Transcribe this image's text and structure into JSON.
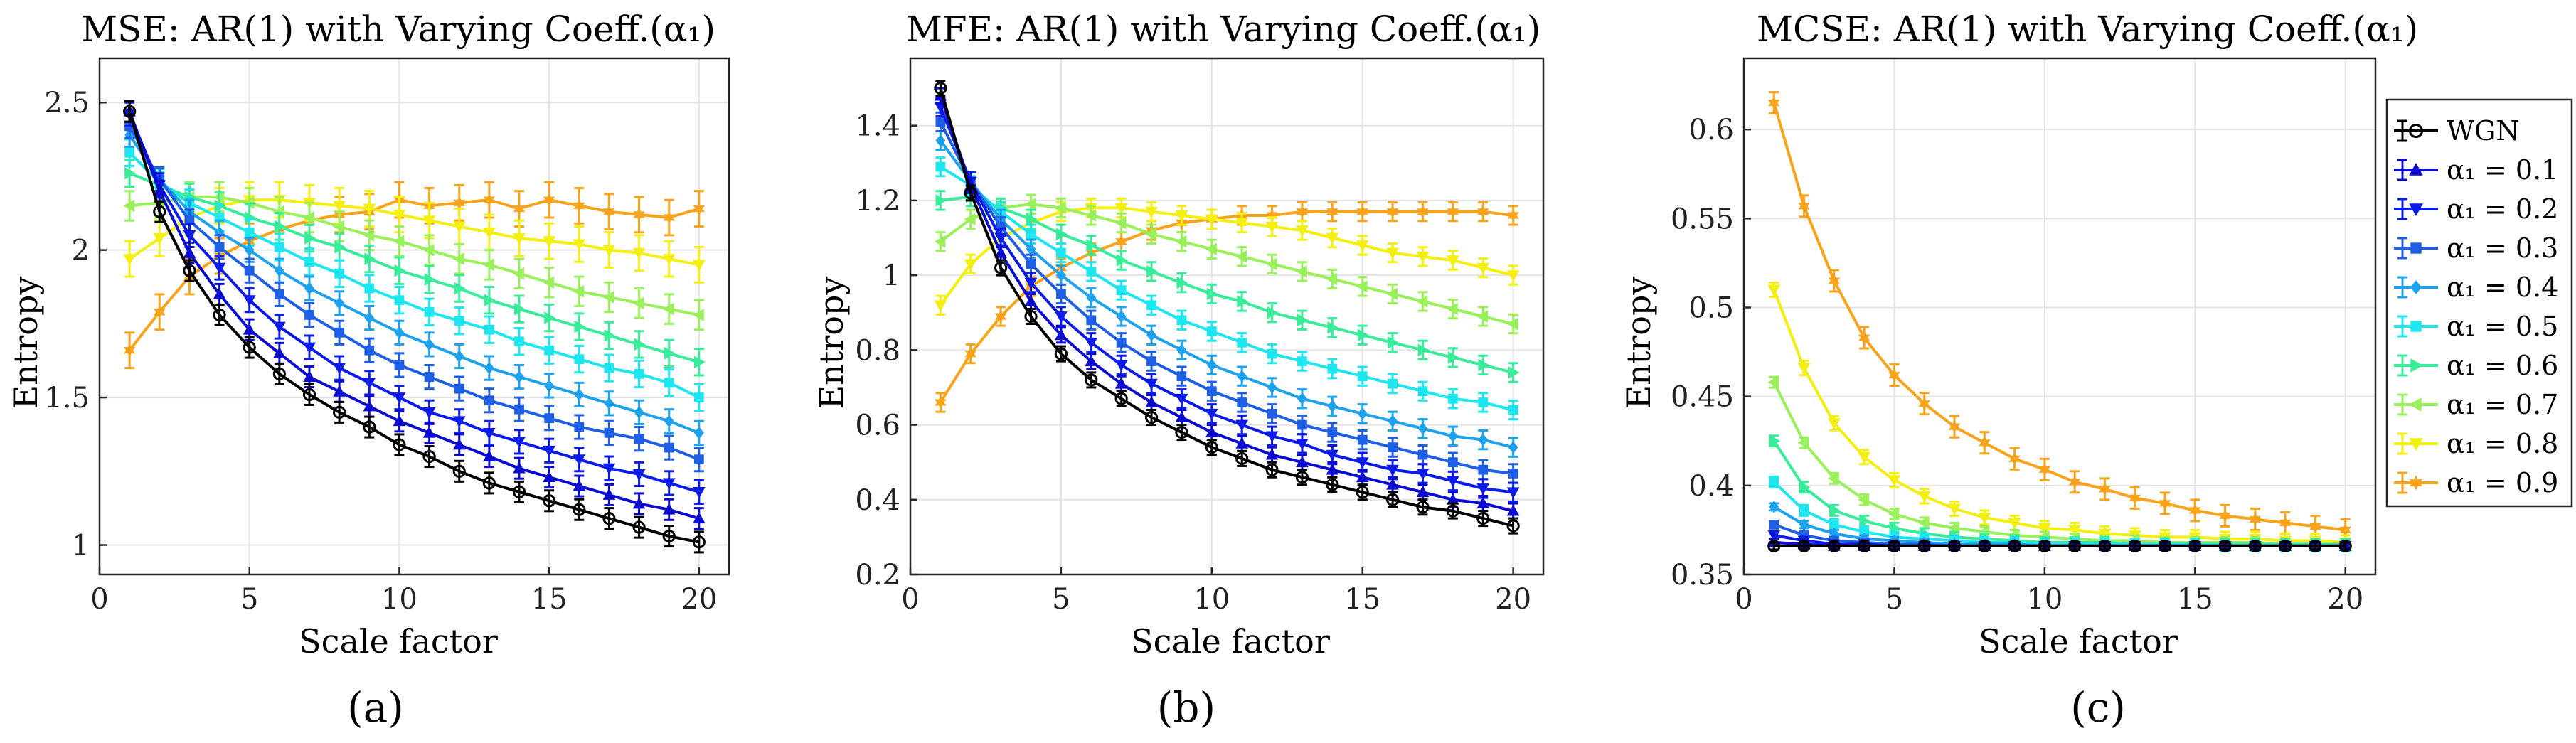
{
  "colors": [
    "#000000",
    "#0c0cd0",
    "#0c1ce8",
    "#1f5fe6",
    "#1ea2ee",
    "#1ee6ef",
    "#38ec9a",
    "#9af05a",
    "#f3ef10",
    "#f7a31b"
  ],
  "legend": {
    "entries": [
      "WGN",
      "α₁ = 0.1",
      "α₁ = 0.2",
      "α₁ = 0.3",
      "α₁ = 0.4",
      "α₁ = 0.5",
      "α₁ = 0.6",
      "α₁ = 0.7",
      "α₁ = 0.8",
      "α₁ = 0.9"
    ],
    "markers": [
      "circle",
      "triangle-up",
      "triangle-down",
      "square",
      "diamond",
      "square",
      "triangle-right",
      "triangle-left",
      "triangle-down",
      "hexagram"
    ]
  },
  "chart_data": [
    {
      "type": "line",
      "panel_label": "(a)",
      "title": "MSE: AR(1) with Varying Coeff.(α₁)",
      "xlabel": "Scale factor",
      "ylabel": "Entropy",
      "xlim": [
        0,
        21
      ],
      "ylim": [
        0.9,
        2.65
      ],
      "xticks": [
        0,
        5,
        10,
        15,
        20
      ],
      "yticks": [
        1,
        1.5,
        2,
        2.5
      ],
      "grid": true,
      "x": [
        1,
        2,
        3,
        4,
        5,
        6,
        7,
        8,
        9,
        10,
        11,
        12,
        13,
        14,
        15,
        16,
        17,
        18,
        19,
        20
      ],
      "series": [
        {
          "name": "WGN",
          "values": [
            2.47,
            2.13,
            1.93,
            1.78,
            1.67,
            1.58,
            1.51,
            1.45,
            1.4,
            1.34,
            1.3,
            1.25,
            1.21,
            1.18,
            1.15,
            1.12,
            1.09,
            1.06,
            1.03,
            1.01
          ],
          "err": 0.035
        },
        {
          "name": "α₁ = 0.1",
          "values": [
            2.47,
            2.2,
            1.99,
            1.85,
            1.73,
            1.65,
            1.57,
            1.52,
            1.47,
            1.42,
            1.38,
            1.34,
            1.3,
            1.26,
            1.23,
            1.2,
            1.17,
            1.14,
            1.12,
            1.09
          ],
          "err": 0.035
        },
        {
          "name": "α₁ = 0.2",
          "values": [
            2.46,
            2.22,
            2.05,
            1.94,
            1.83,
            1.74,
            1.67,
            1.6,
            1.55,
            1.5,
            1.45,
            1.42,
            1.38,
            1.35,
            1.32,
            1.29,
            1.26,
            1.24,
            1.21,
            1.18
          ],
          "err": 0.04
        },
        {
          "name": "α₁ = 0.3",
          "values": [
            2.42,
            2.24,
            2.1,
            2.01,
            1.93,
            1.85,
            1.78,
            1.72,
            1.66,
            1.61,
            1.57,
            1.53,
            1.49,
            1.46,
            1.43,
            1.4,
            1.38,
            1.36,
            1.33,
            1.29
          ],
          "err": 0.04
        },
        {
          "name": "α₁ = 0.4",
          "values": [
            2.39,
            2.24,
            2.13,
            2.06,
            2.0,
            1.93,
            1.87,
            1.82,
            1.77,
            1.72,
            1.68,
            1.64,
            1.6,
            1.57,
            1.54,
            1.51,
            1.48,
            1.45,
            1.42,
            1.38
          ],
          "err": 0.04
        },
        {
          "name": "α₁ = 0.5",
          "values": [
            2.33,
            2.23,
            2.16,
            2.11,
            2.06,
            2.01,
            1.96,
            1.92,
            1.87,
            1.83,
            1.79,
            1.76,
            1.73,
            1.69,
            1.66,
            1.63,
            1.6,
            1.58,
            1.55,
            1.5
          ],
          "err": 0.045
        },
        {
          "name": "α₁ = 0.6",
          "values": [
            2.26,
            2.22,
            2.18,
            2.15,
            2.11,
            2.08,
            2.04,
            2.01,
            1.97,
            1.93,
            1.9,
            1.87,
            1.83,
            1.8,
            1.77,
            1.74,
            1.71,
            1.68,
            1.65,
            1.62
          ],
          "err": 0.045
        },
        {
          "name": "α₁ = 0.7",
          "values": [
            2.15,
            2.16,
            2.18,
            2.18,
            2.16,
            2.13,
            2.11,
            2.08,
            2.05,
            2.03,
            2.0,
            1.97,
            1.95,
            1.92,
            1.89,
            1.86,
            1.84,
            1.82,
            1.8,
            1.78
          ],
          "err": 0.05
        },
        {
          "name": "α₁ = 0.8",
          "values": [
            1.97,
            2.04,
            2.11,
            2.15,
            2.17,
            2.17,
            2.16,
            2.15,
            2.14,
            2.12,
            2.1,
            2.08,
            2.06,
            2.04,
            2.03,
            2.02,
            2.0,
            1.99,
            1.97,
            1.95
          ],
          "err": 0.06
        },
        {
          "name": "α₁ = 0.9",
          "values": [
            1.66,
            1.79,
            1.91,
            1.98,
            2.03,
            2.07,
            2.1,
            2.12,
            2.13,
            2.17,
            2.15,
            2.16,
            2.17,
            2.14,
            2.17,
            2.15,
            2.13,
            2.12,
            2.11,
            2.14
          ],
          "err": 0.06
        }
      ]
    },
    {
      "type": "line",
      "panel_label": "(b)",
      "title": "MFE: AR(1) with Varying Coeff.(α₁)",
      "xlabel": "Scale factor",
      "ylabel": "Entropy",
      "xlim": [
        0,
        21
      ],
      "ylim": [
        0.2,
        1.58
      ],
      "xticks": [
        0,
        5,
        10,
        15,
        20
      ],
      "yticks": [
        0.2,
        0.4,
        0.6,
        0.8,
        1,
        1.2,
        1.4
      ],
      "grid": true,
      "x": [
        1,
        2,
        3,
        4,
        5,
        6,
        7,
        8,
        9,
        10,
        11,
        12,
        13,
        14,
        15,
        16,
        17,
        18,
        19,
        20
      ],
      "series": [
        {
          "name": "WGN",
          "values": [
            1.5,
            1.22,
            1.02,
            0.89,
            0.79,
            0.72,
            0.67,
            0.62,
            0.58,
            0.54,
            0.51,
            0.48,
            0.46,
            0.44,
            0.42,
            0.4,
            0.38,
            0.37,
            0.35,
            0.33
          ],
          "err": 0.02
        },
        {
          "name": "α₁ = 0.1",
          "values": [
            1.48,
            1.24,
            1.06,
            0.93,
            0.84,
            0.77,
            0.71,
            0.66,
            0.62,
            0.58,
            0.55,
            0.52,
            0.5,
            0.48,
            0.46,
            0.44,
            0.42,
            0.4,
            0.39,
            0.37
          ],
          "err": 0.02
        },
        {
          "name": "α₁ = 0.2",
          "values": [
            1.45,
            1.25,
            1.1,
            0.98,
            0.89,
            0.82,
            0.76,
            0.71,
            0.67,
            0.63,
            0.6,
            0.57,
            0.55,
            0.52,
            0.5,
            0.48,
            0.47,
            0.45,
            0.43,
            0.42
          ],
          "err": 0.025
        },
        {
          "name": "α₁ = 0.3",
          "values": [
            1.41,
            1.25,
            1.13,
            1.03,
            0.95,
            0.88,
            0.82,
            0.77,
            0.73,
            0.69,
            0.66,
            0.63,
            0.6,
            0.58,
            0.56,
            0.54,
            0.52,
            0.5,
            0.48,
            0.47
          ],
          "err": 0.025
        },
        {
          "name": "α₁ = 0.4",
          "values": [
            1.36,
            1.25,
            1.15,
            1.07,
            1.0,
            0.94,
            0.89,
            0.84,
            0.8,
            0.76,
            0.73,
            0.7,
            0.67,
            0.65,
            0.63,
            0.61,
            0.59,
            0.57,
            0.56,
            0.54
          ],
          "err": 0.025
        },
        {
          "name": "α₁ = 0.5",
          "values": [
            1.29,
            1.24,
            1.17,
            1.11,
            1.06,
            1.01,
            0.96,
            0.92,
            0.88,
            0.85,
            0.82,
            0.79,
            0.77,
            0.75,
            0.73,
            0.71,
            0.69,
            0.67,
            0.66,
            0.64
          ],
          "err": 0.025
        },
        {
          "name": "α₁ = 0.6",
          "values": [
            1.2,
            1.21,
            1.18,
            1.15,
            1.11,
            1.08,
            1.04,
            1.01,
            0.98,
            0.95,
            0.93,
            0.9,
            0.88,
            0.86,
            0.84,
            0.82,
            0.8,
            0.78,
            0.76,
            0.74
          ],
          "err": 0.025
        },
        {
          "name": "α₁ = 0.7",
          "values": [
            1.09,
            1.15,
            1.18,
            1.19,
            1.18,
            1.16,
            1.14,
            1.11,
            1.09,
            1.07,
            1.05,
            1.03,
            1.01,
            0.99,
            0.97,
            0.95,
            0.93,
            0.91,
            0.89,
            0.87
          ],
          "err": 0.025
        },
        {
          "name": "α₁ = 0.8",
          "values": [
            0.92,
            1.03,
            1.1,
            1.14,
            1.17,
            1.18,
            1.18,
            1.17,
            1.16,
            1.15,
            1.14,
            1.13,
            1.12,
            1.1,
            1.08,
            1.06,
            1.05,
            1.04,
            1.02,
            1.0
          ],
          "err": 0.025
        },
        {
          "name": "α₁ = 0.9",
          "values": [
            0.66,
            0.79,
            0.89,
            0.97,
            1.02,
            1.06,
            1.09,
            1.12,
            1.14,
            1.15,
            1.16,
            1.16,
            1.17,
            1.17,
            1.17,
            1.17,
            1.17,
            1.17,
            1.17,
            1.16
          ],
          "err": 0.025
        }
      ]
    },
    {
      "type": "line",
      "panel_label": "(c)",
      "title": "MCSE: AR(1) with Varying Coeff.(α₁)",
      "xlabel": "Scale factor",
      "ylabel": "Entropy",
      "xlim": [
        0,
        21
      ],
      "ylim": [
        0.35,
        0.64
      ],
      "xticks": [
        0,
        5,
        10,
        15,
        20
      ],
      "yticks": [
        0.35,
        0.4,
        0.45,
        0.5,
        0.55,
        0.6
      ],
      "grid": true,
      "x": [
        1,
        2,
        3,
        4,
        5,
        6,
        7,
        8,
        9,
        10,
        11,
        12,
        13,
        14,
        15,
        16,
        17,
        18,
        19,
        20
      ],
      "series": [
        {
          "name": "WGN",
          "values": [
            0.366,
            0.366,
            0.366,
            0.366,
            0.366,
            0.366,
            0.366,
            0.366,
            0.366,
            0.366,
            0.366,
            0.366,
            0.366,
            0.366,
            0.366,
            0.366,
            0.366,
            0.366,
            0.366,
            0.366
          ],
          "err": 0.002
        },
        {
          "name": "α₁ = 0.1",
          "values": [
            0.368,
            0.367,
            0.366,
            0.366,
            0.366,
            0.366,
            0.366,
            0.366,
            0.366,
            0.366,
            0.366,
            0.366,
            0.366,
            0.366,
            0.366,
            0.366,
            0.366,
            0.366,
            0.366,
            0.366
          ],
          "err": 0.002
        },
        {
          "name": "α₁ = 0.2",
          "values": [
            0.372,
            0.369,
            0.367,
            0.367,
            0.366,
            0.366,
            0.366,
            0.366,
            0.366,
            0.366,
            0.366,
            0.366,
            0.366,
            0.366,
            0.366,
            0.366,
            0.366,
            0.366,
            0.366,
            0.366
          ],
          "err": 0.002
        },
        {
          "name": "α₁ = 0.3",
          "values": [
            0.378,
            0.372,
            0.369,
            0.368,
            0.367,
            0.367,
            0.366,
            0.366,
            0.366,
            0.366,
            0.366,
            0.366,
            0.366,
            0.366,
            0.366,
            0.366,
            0.366,
            0.366,
            0.366,
            0.366
          ],
          "err": 0.002
        },
        {
          "name": "α₁ = 0.4",
          "values": [
            0.388,
            0.378,
            0.373,
            0.37,
            0.369,
            0.368,
            0.367,
            0.367,
            0.367,
            0.366,
            0.366,
            0.366,
            0.366,
            0.366,
            0.366,
            0.366,
            0.366,
            0.366,
            0.366,
            0.366
          ],
          "err": 0.002
        },
        {
          "name": "α₁ = 0.5",
          "values": [
            0.402,
            0.386,
            0.378,
            0.374,
            0.371,
            0.37,
            0.369,
            0.368,
            0.368,
            0.367,
            0.367,
            0.367,
            0.367,
            0.367,
            0.367,
            0.366,
            0.366,
            0.366,
            0.366,
            0.366
          ],
          "err": 0.003
        },
        {
          "name": "α₁ = 0.6",
          "values": [
            0.425,
            0.399,
            0.386,
            0.38,
            0.376,
            0.373,
            0.371,
            0.37,
            0.369,
            0.368,
            0.368,
            0.368,
            0.367,
            0.367,
            0.367,
            0.367,
            0.367,
            0.367,
            0.367,
            0.367
          ],
          "err": 0.003
        },
        {
          "name": "α₁ = 0.7",
          "values": [
            0.458,
            0.424,
            0.404,
            0.392,
            0.384,
            0.379,
            0.376,
            0.374,
            0.372,
            0.371,
            0.37,
            0.369,
            0.369,
            0.368,
            0.368,
            0.368,
            0.368,
            0.367,
            0.367,
            0.367
          ],
          "err": 0.003
        },
        {
          "name": "α₁ = 0.8",
          "values": [
            0.51,
            0.466,
            0.435,
            0.416,
            0.403,
            0.394,
            0.387,
            0.382,
            0.379,
            0.376,
            0.375,
            0.373,
            0.372,
            0.371,
            0.371,
            0.37,
            0.37,
            0.369,
            0.369,
            0.368
          ],
          "err": 0.004
        },
        {
          "name": "α₁ = 0.9",
          "values": [
            0.615,
            0.557,
            0.515,
            0.483,
            0.462,
            0.446,
            0.433,
            0.424,
            0.415,
            0.409,
            0.402,
            0.398,
            0.393,
            0.39,
            0.386,
            0.383,
            0.381,
            0.379,
            0.377,
            0.375
          ],
          "err": 0.006
        }
      ]
    }
  ]
}
